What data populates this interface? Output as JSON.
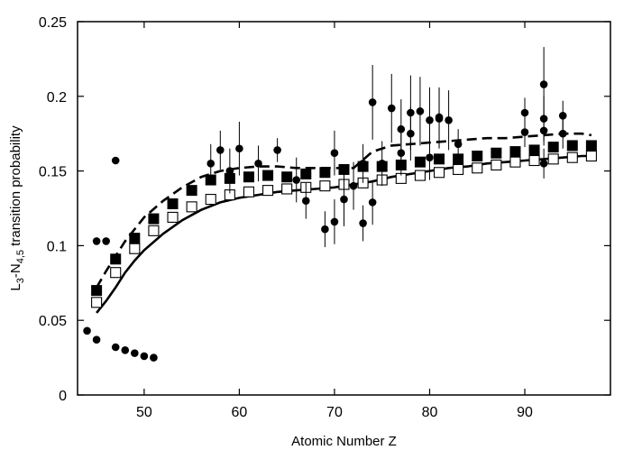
{
  "chart_data": {
    "type": "scatter",
    "xlabel": "Atomic Number Z",
    "ylabel": "L3-N4,5 transition probability",
    "ylabel_parts": {
      "main": "L",
      "sub1": "3",
      "mid": "-N",
      "sub2": "4,5",
      "tail": " transition probability"
    },
    "xlim": [
      43,
      99
    ],
    "ylim": [
      0,
      0.25
    ],
    "xticks": [
      50,
      60,
      70,
      80,
      90
    ],
    "yticks": [
      0,
      0.05,
      0.1,
      0.15,
      0.2,
      0.25
    ],
    "ytick_labels": [
      "0",
      "0.05",
      "0.1",
      "0.15",
      "0.2",
      "0.25"
    ],
    "grid": false,
    "series": [
      {
        "style": "dashed-line",
        "x": [
          45,
          46,
          47,
          48,
          49,
          50,
          52,
          54,
          56,
          58,
          60,
          62,
          64,
          66,
          68,
          70,
          72,
          74,
          76,
          78,
          80,
          82,
          84,
          86,
          88,
          90,
          92,
          94,
          96,
          97
        ],
        "y": [
          0.072,
          0.083,
          0.093,
          0.103,
          0.111,
          0.119,
          0.13,
          0.139,
          0.146,
          0.15,
          0.152,
          0.153,
          0.153,
          0.152,
          0.152,
          0.152,
          0.152,
          0.163,
          0.167,
          0.168,
          0.169,
          0.17,
          0.171,
          0.172,
          0.172,
          0.173,
          0.174,
          0.175,
          0.175,
          0.174
        ]
      },
      {
        "style": "solid-line",
        "x": [
          45,
          46,
          47,
          48,
          49,
          50,
          52,
          54,
          56,
          58,
          60,
          62,
          64,
          66,
          68,
          70,
          72,
          74,
          76,
          78,
          80,
          82,
          84,
          86,
          88,
          90,
          92,
          94,
          96,
          97
        ],
        "y": [
          0.055,
          0.063,
          0.072,
          0.082,
          0.09,
          0.097,
          0.108,
          0.117,
          0.124,
          0.129,
          0.132,
          0.134,
          0.136,
          0.137,
          0.138,
          0.139,
          0.141,
          0.143,
          0.146,
          0.148,
          0.15,
          0.152,
          0.153,
          0.155,
          0.156,
          0.157,
          0.158,
          0.159,
          0.16,
          0.16
        ]
      },
      {
        "style": "filled-square",
        "x": [
          45,
          47,
          49,
          51,
          53,
          55,
          57,
          59,
          61,
          63,
          65,
          67,
          69,
          71,
          73,
          75,
          77,
          79,
          81,
          83,
          85,
          87,
          89,
          91,
          93,
          95,
          97
        ],
        "y": [
          0.07,
          0.091,
          0.105,
          0.118,
          0.128,
          0.137,
          0.144,
          0.145,
          0.146,
          0.147,
          0.146,
          0.148,
          0.149,
          0.151,
          0.153,
          0.153,
          0.154,
          0.156,
          0.158,
          0.158,
          0.16,
          0.162,
          0.163,
          0.164,
          0.166,
          0.167,
          0.167
        ]
      },
      {
        "style": "open-square",
        "x": [
          45,
          47,
          49,
          51,
          53,
          55,
          57,
          59,
          61,
          63,
          65,
          67,
          69,
          71,
          73,
          75,
          77,
          79,
          81,
          83,
          85,
          87,
          89,
          91,
          93,
          95,
          97
        ],
        "y": [
          0.062,
          0.082,
          0.098,
          0.11,
          0.119,
          0.126,
          0.131,
          0.134,
          0.136,
          0.137,
          0.138,
          0.139,
          0.14,
          0.141,
          0.142,
          0.144,
          0.145,
          0.147,
          0.149,
          0.151,
          0.152,
          0.154,
          0.156,
          0.157,
          0.158,
          0.159,
          0.16
        ]
      },
      {
        "style": "filled-circle-errorbar",
        "points": [
          {
            "x": 44,
            "y": 0.043
          },
          {
            "x": 45,
            "y": 0.037
          },
          {
            "x": 45,
            "y": 0.103
          },
          {
            "x": 46,
            "y": 0.103
          },
          {
            "x": 47,
            "y": 0.157
          },
          {
            "x": 47,
            "y": 0.032
          },
          {
            "x": 48,
            "y": 0.03
          },
          {
            "x": 49,
            "y": 0.028
          },
          {
            "x": 50,
            "y": 0.026
          },
          {
            "x": 51,
            "y": 0.025
          },
          {
            "x": 57,
            "y": 0.155,
            "err": 0.013
          },
          {
            "x": 58,
            "y": 0.164,
            "err": 0.013
          },
          {
            "x": 59,
            "y": 0.15,
            "err": 0.015
          },
          {
            "x": 60,
            "y": 0.165,
            "err": 0.018
          },
          {
            "x": 62,
            "y": 0.155,
            "err": 0.012
          },
          {
            "x": 64,
            "y": 0.164,
            "err": 0.008
          },
          {
            "x": 66,
            "y": 0.144,
            "err": 0.015
          },
          {
            "x": 67,
            "y": 0.13,
            "err": 0.012
          },
          {
            "x": 69,
            "y": 0.111,
            "err": 0.012
          },
          {
            "x": 70,
            "y": 0.116,
            "err": 0.015
          },
          {
            "x": 70,
            "y": 0.162,
            "err": 0.015
          },
          {
            "x": 71,
            "y": 0.131,
            "err": 0.018
          },
          {
            "x": 72,
            "y": 0.14,
            "err": 0.016
          },
          {
            "x": 73,
            "y": 0.115,
            "err": 0.012
          },
          {
            "x": 73,
            "y": 0.155,
            "err": 0.013
          },
          {
            "x": 74,
            "y": 0.196,
            "err": 0.025
          },
          {
            "x": 74,
            "y": 0.129,
            "err": 0.015
          },
          {
            "x": 75,
            "y": 0.155,
            "err": 0.015
          },
          {
            "x": 76,
            "y": 0.192,
            "err": 0.023
          },
          {
            "x": 77,
            "y": 0.178,
            "err": 0.02
          },
          {
            "x": 77,
            "y": 0.162,
            "err": 0.015
          },
          {
            "x": 78,
            "y": 0.189,
            "err": 0.025
          },
          {
            "x": 78,
            "y": 0.175,
            "err": 0.018
          },
          {
            "x": 79,
            "y": 0.19,
            "err": 0.023
          },
          {
            "x": 80,
            "y": 0.184,
            "err": 0.022
          },
          {
            "x": 80,
            "y": 0.159,
            "err": 0.015
          },
          {
            "x": 81,
            "y": 0.186,
            "err": 0.02
          },
          {
            "x": 81,
            "y": 0.185,
            "err": 0.02
          },
          {
            "x": 82,
            "y": 0.184,
            "err": 0.02
          },
          {
            "x": 83,
            "y": 0.168,
            "err": 0.01
          },
          {
            "x": 90,
            "y": 0.189,
            "err": 0.01
          },
          {
            "x": 90,
            "y": 0.176,
            "err": 0.01
          },
          {
            "x": 92,
            "y": 0.208,
            "err": 0.025
          },
          {
            "x": 92,
            "y": 0.185,
            "err": 0.015
          },
          {
            "x": 92,
            "y": 0.177,
            "err": 0.01
          },
          {
            "x": 92,
            "y": 0.155,
            "err": 0.01
          },
          {
            "x": 94,
            "y": 0.187,
            "err": 0.01
          },
          {
            "x": 94,
            "y": 0.175,
            "err": 0.01
          }
        ]
      }
    ]
  }
}
